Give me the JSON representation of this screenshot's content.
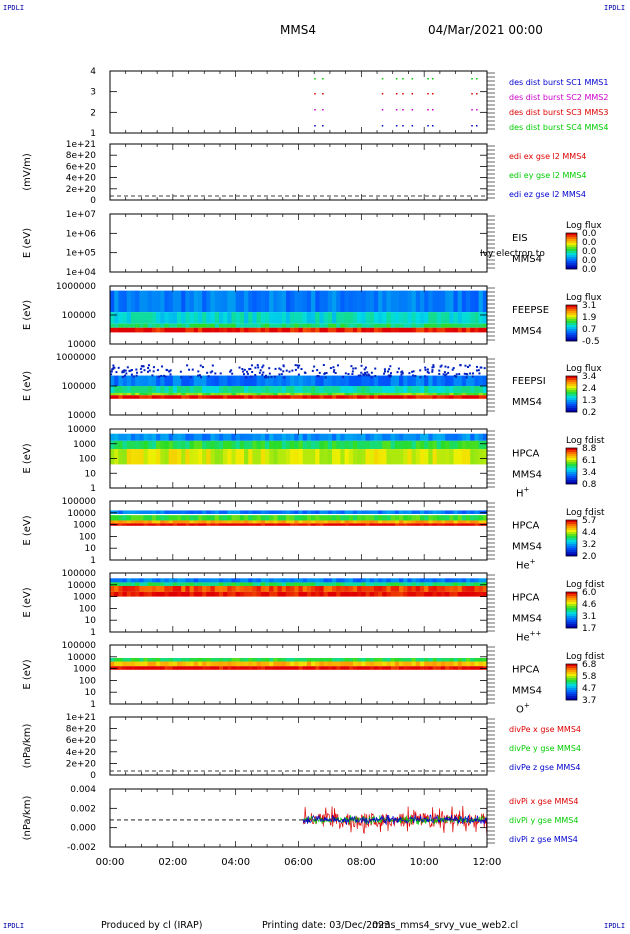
{
  "header": {
    "corner_labels": [
      "IPDLI",
      "IPDLI",
      "IPDLI",
      "IPDLI"
    ],
    "spacecraft": "MMS4",
    "datetime": "04/Mar/2021 00:00"
  },
  "footer": {
    "produced_by": "Produced by cl (IRAP)",
    "printing_date": "Printing date: 03/Dec/2023",
    "filename": "mms_mms4_srvy_vue_web2.cl"
  },
  "colors": {
    "red": "#dd0000",
    "green": "#00cc00",
    "blue": "#0000cc",
    "magenta": "#cc00cc"
  },
  "chart_data": [
    {
      "type": "scatter",
      "id": "burst",
      "ylabel": "",
      "y_ticks": [
        "4",
        "3",
        "2",
        "1"
      ],
      "legend": [
        {
          "label": "des dist burst SC1 MMS1",
          "color": "#0000cc"
        },
        {
          "label": "des dist burst SC2 MMS2",
          "color": "#cc00cc"
        },
        {
          "label": "des dist burst SC3 MMS3",
          "color": "#dd0000"
        },
        {
          "label": "des dist burst SC4 MMS4",
          "color": "#00cc00"
        }
      ],
      "burst_times_hours": [
        6.5,
        6.75,
        8.65,
        9.1,
        9.3,
        9.6,
        10.1,
        10.25,
        11.5,
        11.65
      ]
    },
    {
      "type": "line",
      "id": "edi",
      "ylabel": "(mV/m)",
      "y_ticks": [
        "1e+21",
        "8e+20",
        "6e+20",
        "4e+20",
        "2e+20",
        "0"
      ],
      "legend": [
        {
          "label": "edi ex gse l2 MMS4",
          "color": "#dd0000"
        },
        {
          "label": "edi ey gse l2 MMS4",
          "color": "#00cc00"
        },
        {
          "label": "edi ez gse l2 MMS4",
          "color": "#0000cc"
        }
      ]
    },
    {
      "type": "heatmap",
      "id": "eis",
      "ylabel": "E (eV)",
      "y_ticks": [
        "1e+07",
        "1e+06",
        "1e+05",
        "1e+04"
      ],
      "instrument": [
        "EIS",
        "MMS4"
      ],
      "overlap_text": "Ivy electron to",
      "colorbar_title": "Log flux",
      "colorbar_ticks": [
        "0.0",
        "0.0",
        "0.0",
        "0.0",
        "0.0"
      ]
    },
    {
      "type": "heatmap",
      "id": "feepse",
      "ylabel": "E (eV)",
      "y_ticks": [
        "1000000",
        "100000",
        "10000"
      ],
      "instrument": [
        "FEEPSE",
        "MMS4"
      ],
      "colorbar_title": "Log flux",
      "colorbar_ticks": [
        "3.1",
        "1.9",
        "0.7",
        "-0.5"
      ]
    },
    {
      "type": "heatmap",
      "id": "feepsi",
      "ylabel": "E (eV)",
      "y_ticks": [
        "1000000",
        "100000",
        "10000"
      ],
      "instrument": [
        "FEEPSI",
        "MMS4"
      ],
      "colorbar_title": "Log flux",
      "colorbar_ticks": [
        "3.4",
        "2.4",
        "1.3",
        "0.2"
      ]
    },
    {
      "type": "heatmap",
      "id": "hpca_h",
      "ylabel": "E (eV)",
      "y_ticks": [
        "10000",
        "1000",
        "100",
        "10",
        "1"
      ],
      "instrument": [
        "HPCA",
        "MMS4"
      ],
      "species": "H",
      "charge": "+",
      "colorbar_title": "Log fdist",
      "colorbar_ticks": [
        "8.8",
        "6.1",
        "3.4",
        "0.8"
      ]
    },
    {
      "type": "heatmap",
      "id": "hpca_he1",
      "ylabel": "E (eV)",
      "y_ticks": [
        "100000",
        "10000",
        "1000",
        "100",
        "10",
        "1"
      ],
      "instrument": [
        "HPCA",
        "MMS4"
      ],
      "species": "He",
      "charge": "+",
      "colorbar_title": "Log fdist",
      "colorbar_ticks": [
        "5.7",
        "4.4",
        "3.2",
        "2.0"
      ]
    },
    {
      "type": "heatmap",
      "id": "hpca_he2",
      "ylabel": "E (eV)",
      "y_ticks": [
        "100000",
        "10000",
        "1000",
        "100",
        "10",
        "1"
      ],
      "instrument": [
        "HPCA",
        "MMS4"
      ],
      "species": "He",
      "charge": "++",
      "colorbar_title": "Log fdist",
      "colorbar_ticks": [
        "6.0",
        "4.6",
        "3.1",
        "1.7"
      ]
    },
    {
      "type": "heatmap",
      "id": "hpca_o",
      "ylabel": "E (eV)",
      "y_ticks": [
        "100000",
        "10000",
        "1000",
        "100",
        "10",
        "1"
      ],
      "instrument": [
        "HPCA",
        "MMS4"
      ],
      "species": "O",
      "charge": "+",
      "colorbar_title": "Log fdist",
      "colorbar_ticks": [
        "6.8",
        "5.8",
        "4.7",
        "3.7"
      ]
    },
    {
      "type": "line",
      "id": "divpe",
      "ylabel": "(nPa/km)",
      "y_ticks": [
        "1e+21",
        "8e+20",
        "6e+20",
        "4e+20",
        "2e+20",
        "0"
      ],
      "legend": [
        {
          "label": "divPe x gse MMS4",
          "color": "#dd0000"
        },
        {
          "label": "divPe y gse MMS4",
          "color": "#00cc00"
        },
        {
          "label": "divPe z gse MMS4",
          "color": "#0000cc"
        }
      ]
    },
    {
      "type": "line",
      "id": "divpi",
      "ylabel": "(nPa/km)",
      "y_ticks": [
        "0.004",
        "0.002",
        "0.000",
        "-0.002"
      ],
      "ylim": [
        -0.0035,
        0.004
      ],
      "legend": [
        {
          "label": "divPi x gse MMS4",
          "color": "#dd0000"
        },
        {
          "label": "divPi y gse MMS4",
          "color": "#00cc00"
        },
        {
          "label": "divPi z gse MMS4",
          "color": "#0000cc"
        }
      ],
      "x_ticks": [
        "00:00",
        "02:00",
        "04:00",
        "06:00",
        "08:00",
        "10:00",
        "12:00"
      ],
      "xlim_hours": [
        0,
        12
      ]
    }
  ]
}
